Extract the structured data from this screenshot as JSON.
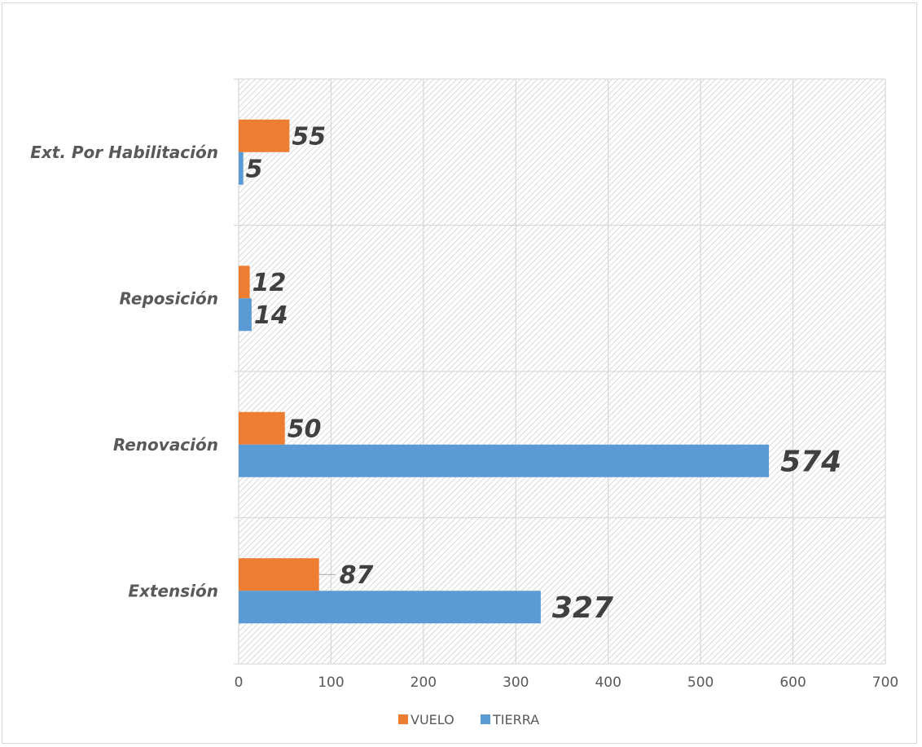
{
  "chart_data": {
    "type": "bar",
    "orientation": "horizontal",
    "categories": [
      "Ext. Por Habilitación",
      "Reposición",
      "Renovación",
      "Extensión"
    ],
    "series": [
      {
        "name": "VUELO",
        "color": "#ED7D31",
        "values": [
          55,
          12,
          50,
          87
        ]
      },
      {
        "name": "TIERRA",
        "color": "#5B9BD5",
        "values": [
          5,
          14,
          574,
          327
        ]
      }
    ],
    "xlim": [
      0,
      700
    ],
    "xticks": [
      "0",
      "100",
      "200",
      "300",
      "400",
      "500",
      "600",
      "700"
    ],
    "grid": true,
    "legend": "bottom",
    "title": "",
    "xlabel": "",
    "ylabel": ""
  }
}
